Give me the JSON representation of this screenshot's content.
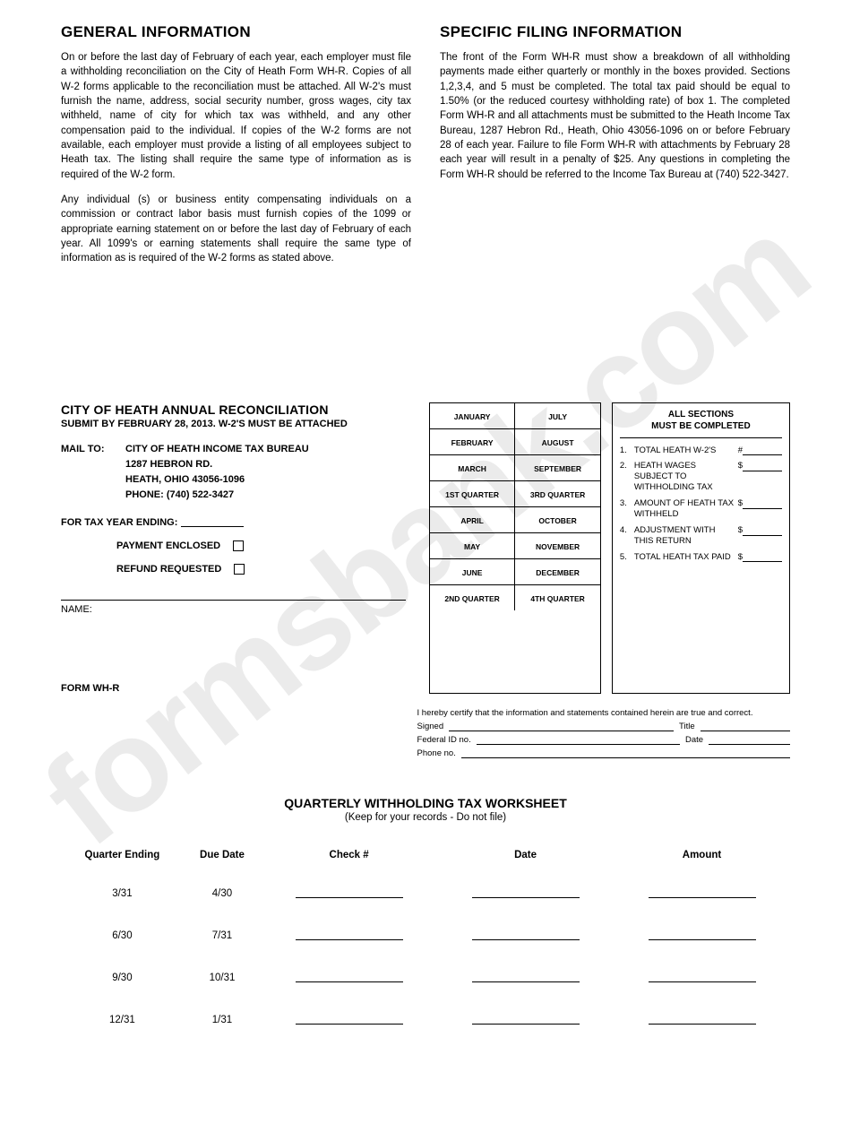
{
  "general": {
    "title": "GENERAL INFORMATION",
    "para1": "On or before the last day of February of each year, each employer must file a withholding reconciliation on the City of Heath Form WH-R.  Copies of all W-2 forms applicable to the reconciliation must be attached.  All W-2's must furnish the name, address, social security number, gross wages, city tax withheld, name of city for which tax was withheld, and any other compensation paid to the individual.  If copies of the W-2 forms are not available, each employer must provide a listing of all employees subject to Heath tax.  The listing shall require the same type of information as is required of the W-2 form.",
    "para2": "Any individual (s) or business entity compensating individuals on a commission or contract labor basis must furnish copies of the 1099 or appropriate earning statement on or before the last day of February of each year.  All 1099's or earning statements shall require the same type of information as is required of the W-2 forms as stated above."
  },
  "specific": {
    "title": "SPECIFIC FILING INFORMATION",
    "para1": "The front of the Form WH-R must show a breakdown of all withholding payments made either quarterly or monthly in the boxes provided.  Sections 1,2,3,4, and 5 must be completed. The total tax paid should be equal to 1.50% (or the reduced courtesy withholding rate) of box 1.  The completed Form WH-R and all attachments must be submitted to the Heath Income Tax Bureau, 1287 Hebron Rd., Heath, Ohio 43056-1096 on or before February 28 of each year. Failure to file Form WH-R with attachments by February 28 each year will result in a penalty of $25. Any questions in completing the Form WH-R should be referred to the Income Tax Bureau at (740) 522-3427."
  },
  "recon": {
    "title": "CITY OF HEATH ANNUAL RECONCILIATION",
    "subtitle": "SUBMIT BY FEBRUARY 28, 2013. W-2'S MUST BE ATTACHED",
    "mail_label": "MAIL TO:",
    "mail_line1": "CITY OF HEATH INCOME TAX BUREAU",
    "mail_line2": "1287 HEBRON RD.",
    "mail_line3": "HEATH, OHIO 43056-1096",
    "mail_line4": "PHONE: (740) 522-3427",
    "tax_year_label": "FOR TAX YEAR ENDING:",
    "payment_enclosed": "PAYMENT ENCLOSED",
    "refund_requested": "REFUND REQUESTED",
    "name_label": "NAME:",
    "form_label": "FORM WH-R"
  },
  "months": {
    "rows": [
      [
        "JANUARY",
        "JULY"
      ],
      [
        "FEBRUARY",
        "AUGUST"
      ],
      [
        "MARCH",
        "SEPTEMBER"
      ],
      [
        "1ST QUARTER",
        "3RD QUARTER"
      ],
      [
        "APRIL",
        "OCTOBER"
      ],
      [
        "MAY",
        "NOVEMBER"
      ],
      [
        "JUNE",
        "DECEMBER"
      ],
      [
        "2ND QUARTER",
        "4TH QUARTER"
      ]
    ]
  },
  "sections": {
    "header1": "ALL SECTIONS",
    "header2": "MUST BE COMPLETED",
    "items": [
      {
        "n": "1.",
        "label": "TOTAL HEATH W-2'S",
        "prefix": "#"
      },
      {
        "n": "2.",
        "label": "HEATH WAGES SUBJECT TO WITHHOLDING TAX",
        "prefix": "$"
      },
      {
        "n": "3.",
        "label": "AMOUNT OF HEATH TAX WITHHELD",
        "prefix": "$"
      },
      {
        "n": "4.",
        "label": "ADJUSTMENT WITH THIS RETURN",
        "prefix": "$"
      },
      {
        "n": "5.",
        "label": "TOTAL HEATH TAX PAID",
        "prefix": "$"
      }
    ]
  },
  "certify": {
    "statement": "I hereby certify that the information and statements contained herein are true and correct.",
    "signed": "Signed",
    "title": "Title",
    "fedid": "Federal ID no.",
    "date": "Date",
    "phone": "Phone no."
  },
  "worksheet": {
    "title": "QUARTERLY WITHHOLDING TAX WORKSHEET",
    "subtitle": "(Keep for your records - Do not file)",
    "cols": [
      "Quarter Ending",
      "Due Date",
      "Check #",
      "Date",
      "Amount"
    ],
    "rows": [
      {
        "qe": "3/31",
        "dd": "4/30"
      },
      {
        "qe": "6/30",
        "dd": "7/31"
      },
      {
        "qe": "9/30",
        "dd": "10/31"
      },
      {
        "qe": "12/31",
        "dd": "1/31"
      }
    ]
  }
}
